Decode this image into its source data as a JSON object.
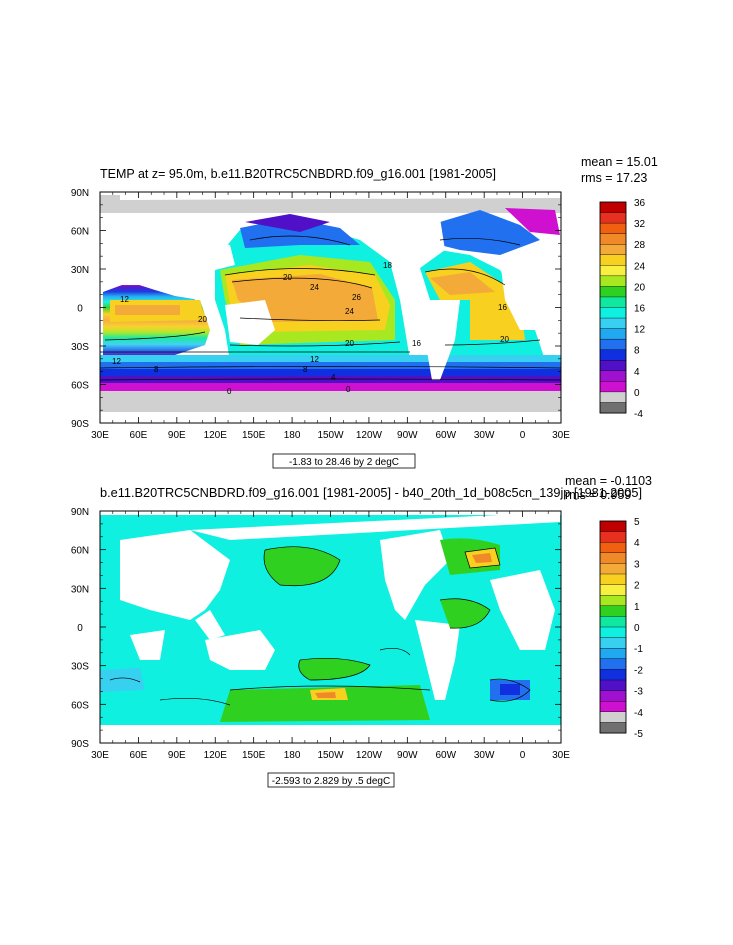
{
  "chart_data": [
    {
      "type": "heatmap",
      "title": "TEMP at z=  95.0m, b.e11.B20TRC5CNBDRD.f09_g16.001 [1981-2005]",
      "stats": {
        "mean": "mean = 15.01",
        "rms": "rms = 17.23"
      },
      "range_label": "-1.83 to 28.46 by 2 degC",
      "x_ticks": [
        "30E",
        "60E",
        "90E",
        "120E",
        "150E",
        "180",
        "150W",
        "120W",
        "90W",
        "60W",
        "30W",
        "0",
        "30E"
      ],
      "y_ticks": [
        "90N",
        "60N",
        "30N",
        "0",
        "30S",
        "60S",
        "90S"
      ],
      "xlim": [
        30,
        390
      ],
      "ylim": [
        -90,
        90
      ],
      "colorbar": {
        "labels": [
          "36",
          "32",
          "28",
          "24",
          "20",
          "16",
          "12",
          "8",
          "4",
          "0",
          "-4"
        ],
        "colors": [
          "#c00000",
          "#e83020",
          "#f06010",
          "#f08a28",
          "#f4aa38",
          "#f8d020",
          "#f8f040",
          "#a8e820",
          "#30d020",
          "#10e8a0",
          "#10f0e0",
          "#38d0f0",
          "#20a8f0",
          "#2070f0",
          "#1030e0",
          "#5010c8",
          "#a010d0",
          "#d010d0",
          "#d0d0d0",
          "#707070"
        ]
      },
      "contour_labels": [
        "20",
        "24",
        "26",
        "24",
        "18",
        "20",
        "16",
        "20",
        "16",
        "12",
        "12",
        "8",
        "0",
        "8",
        "4",
        "0",
        "12",
        "20"
      ]
    },
    {
      "type": "heatmap",
      "title": "b.e11.B20TRC5CNBDRD.f09_g16.001 [1981-2005] - b40_20th_1d_b08c5cn_139jp [1981-2005]",
      "stats": {
        "mean": "mean = -0.1103",
        "rms": "rms = 0.959"
      },
      "range_label": "-2.593 to 2.829 by .5 degC",
      "x_ticks": [
        "30E",
        "60E",
        "90E",
        "120E",
        "150E",
        "180",
        "150W",
        "120W",
        "90W",
        "60W",
        "30W",
        "0",
        "30E"
      ],
      "y_ticks": [
        "90N",
        "60N",
        "30N",
        "0",
        "30S",
        "60S",
        "90S"
      ],
      "xlim": [
        30,
        390
      ],
      "ylim": [
        -90,
        90
      ],
      "colorbar": {
        "labels": [
          "5",
          "4",
          "3",
          "2",
          "1",
          "0",
          "-1",
          "-2",
          "-3",
          "-4",
          "-5"
        ],
        "colors": [
          "#c00000",
          "#e83020",
          "#f06010",
          "#f08a28",
          "#f4aa38",
          "#f8d020",
          "#f8f040",
          "#a8e820",
          "#30d020",
          "#10e8a0",
          "#10f0e0",
          "#38d0f0",
          "#20a8f0",
          "#2070f0",
          "#1030e0",
          "#5010c8",
          "#a010d0",
          "#d010d0",
          "#d0d0d0",
          "#707070"
        ]
      }
    }
  ]
}
